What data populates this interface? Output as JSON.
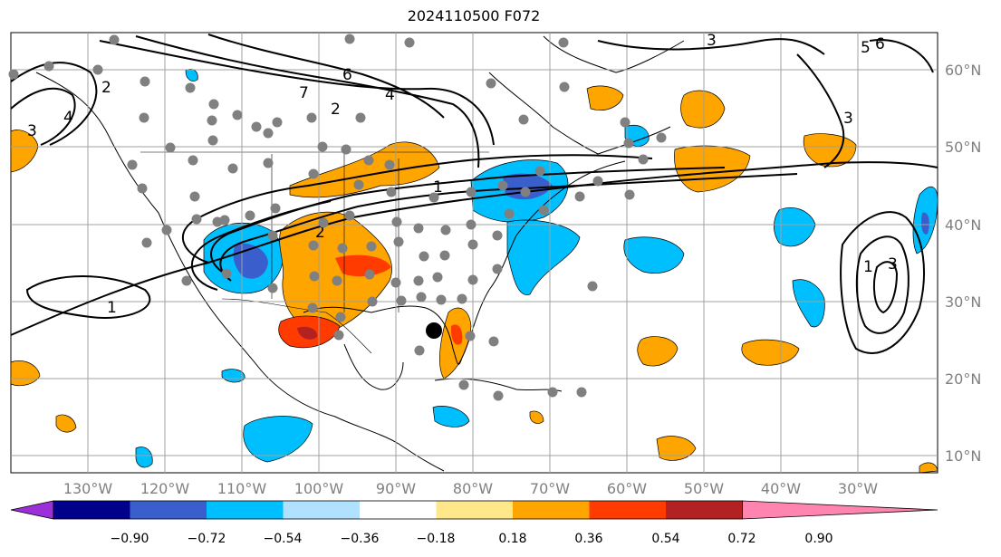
{
  "title": "2024110500 F072",
  "map": {
    "longitude_labels": [
      "130°W",
      "120°W",
      "110°W",
      "100°W",
      "90°W",
      "80°W",
      "70°W",
      "60°W",
      "50°W",
      "40°W",
      "30°W"
    ],
    "latitude_labels": [
      "60°N",
      "50°N",
      "40°N",
      "30°N",
      "20°N",
      "10°N"
    ],
    "contour_labels": [
      "2",
      "3",
      "4",
      "6",
      "7",
      "2",
      "4",
      "1",
      "2",
      "3",
      "1",
      "3",
      "5",
      "6",
      "1",
      "3"
    ],
    "marker_color": "#808080",
    "storm_marker_color": "#000000"
  },
  "colorbar": {
    "ticks": [
      "−0.90",
      "−0.72",
      "−0.54",
      "−0.36",
      "−0.18",
      "0.18",
      "0.36",
      "0.54",
      "0.72",
      "0.90"
    ],
    "colors": [
      "#9b30d9",
      "#00008b",
      "#3a5fcd",
      "#00bfff",
      "#b0e2ff",
      "#ffffff",
      "#ffe88a",
      "#ffa500",
      "#ff3b00",
      "#b22222",
      "#ff85b0"
    ]
  }
}
